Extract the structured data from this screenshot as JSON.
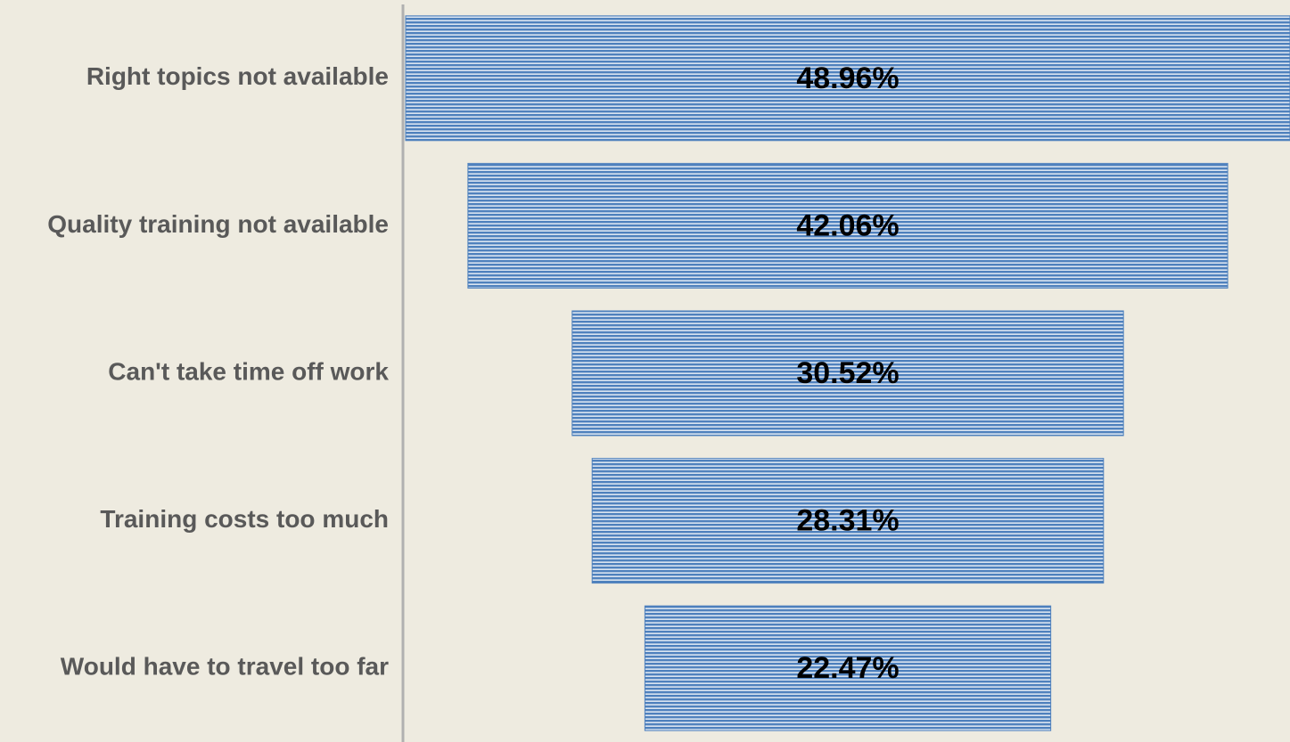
{
  "chart_data": {
    "type": "funnel",
    "categories": [
      "Right topics not available",
      "Quality training not available",
      "Can't take time off work",
      "Training costs too much",
      "Would have to travel too far"
    ],
    "values": [
      48.96,
      42.06,
      30.52,
      28.31,
      22.47
    ],
    "value_labels": [
      "48.96%",
      "42.06%",
      "30.52%",
      "28.31%",
      "22.47%"
    ],
    "color": "#4f81bd"
  }
}
